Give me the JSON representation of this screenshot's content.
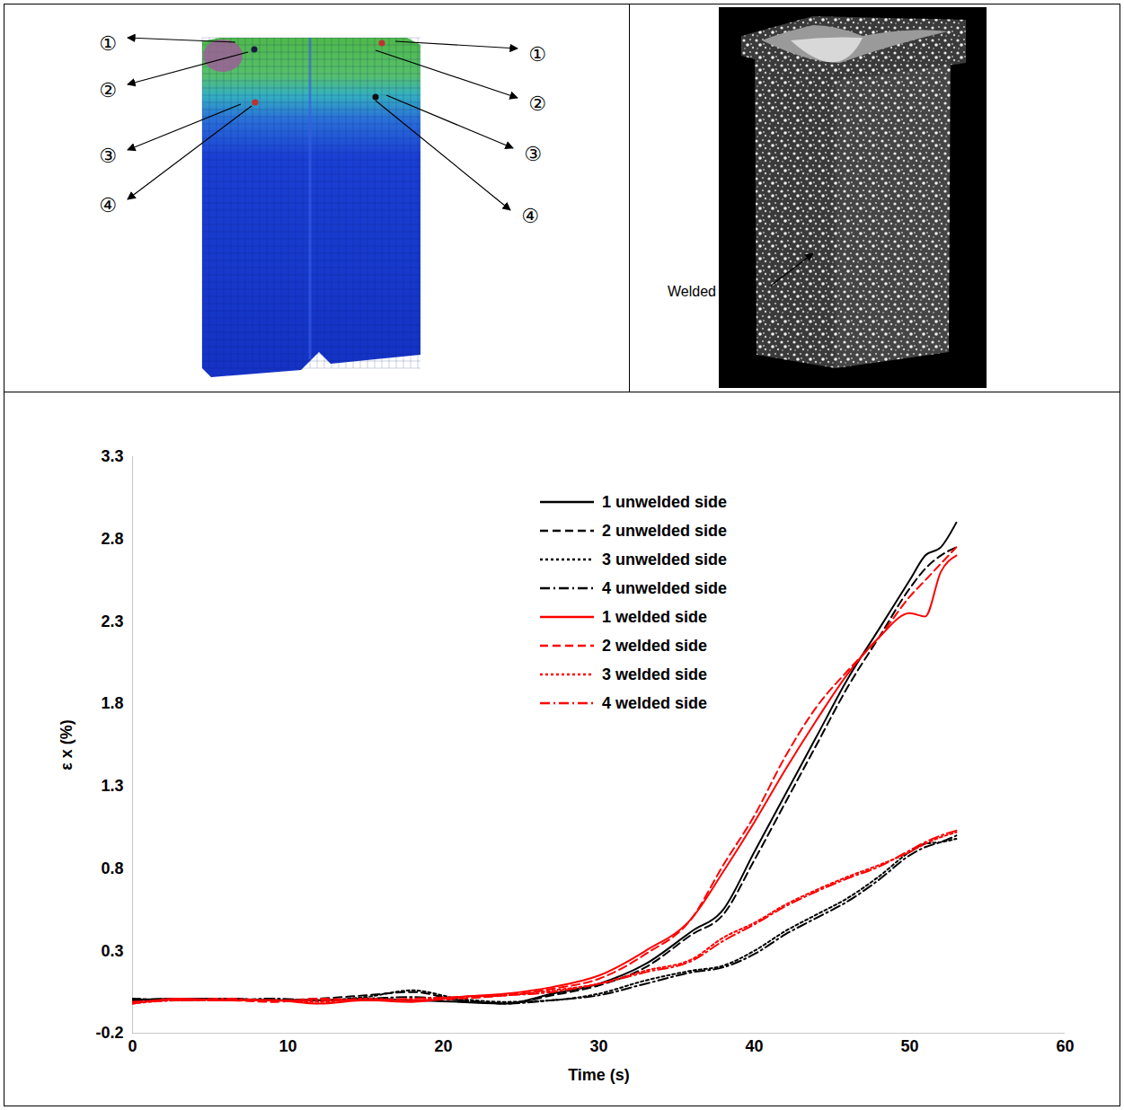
{
  "figure": {
    "mesh_point_labels": [
      "①",
      "②",
      "③",
      "④"
    ],
    "photo_label": "Welded"
  },
  "chart_data": {
    "type": "line",
    "x_label": "Time (s)",
    "y_label": "ε x (%)",
    "x": [
      0,
      3,
      6,
      9,
      12,
      15,
      18,
      21,
      24,
      27,
      30,
      33,
      36,
      38,
      40,
      42,
      44,
      46,
      48,
      50,
      51,
      52,
      53
    ],
    "series": [
      {
        "name": "1 unwelded side",
        "color": "#000000",
        "line_style": "solid",
        "values": [
          0.0,
          0.01,
          0.01,
          0.0,
          0.0,
          0.01,
          0.0,
          -0.01,
          -0.02,
          0.04,
          0.1,
          0.22,
          0.42,
          0.55,
          0.9,
          1.25,
          1.6,
          1.95,
          2.25,
          2.55,
          2.7,
          2.75,
          2.9
        ]
      },
      {
        "name": "2 unwelded side",
        "color": "#000000",
        "line_style": "dashed",
        "values": [
          0.01,
          0.0,
          0.01,
          0.0,
          0.01,
          0.03,
          0.05,
          0.0,
          -0.02,
          0.03,
          0.09,
          0.2,
          0.4,
          0.52,
          0.85,
          1.2,
          1.55,
          1.9,
          2.2,
          2.5,
          2.62,
          2.7,
          2.75
        ]
      },
      {
        "name": "3 unwelded side",
        "color": "#000000",
        "line_style": "dotted",
        "values": [
          0.01,
          0.0,
          0.01,
          0.0,
          0.0,
          0.02,
          0.06,
          0.01,
          -0.01,
          0.0,
          0.04,
          0.12,
          0.18,
          0.21,
          0.3,
          0.42,
          0.52,
          0.62,
          0.75,
          0.9,
          0.95,
          0.96,
          0.98
        ]
      },
      {
        "name": "4 unwelded side",
        "color": "#000000",
        "line_style": "dashdot",
        "values": [
          0.0,
          0.01,
          0.0,
          0.01,
          0.0,
          0.01,
          0.02,
          0.0,
          -0.02,
          0.0,
          0.03,
          0.1,
          0.17,
          0.2,
          0.28,
          0.4,
          0.5,
          0.6,
          0.73,
          0.88,
          0.93,
          0.96,
          1.0
        ]
      },
      {
        "name": "1 welded side",
        "color": "#ff0000",
        "line_style": "solid",
        "values": [
          -0.02,
          0.01,
          0.0,
          0.0,
          -0.02,
          0.0,
          -0.01,
          0.02,
          0.04,
          0.08,
          0.15,
          0.3,
          0.5,
          0.78,
          1.08,
          1.4,
          1.7,
          1.98,
          2.2,
          2.35,
          2.33,
          2.6,
          2.7
        ]
      },
      {
        "name": "2 welded side",
        "color": "#ff0000",
        "line_style": "dashed",
        "values": [
          -0.01,
          0.0,
          0.0,
          -0.01,
          0.01,
          0.0,
          0.0,
          0.01,
          0.03,
          0.07,
          0.13,
          0.28,
          0.5,
          0.82,
          1.12,
          1.48,
          1.78,
          2.0,
          2.2,
          2.45,
          2.55,
          2.65,
          2.75
        ]
      },
      {
        "name": "3 welded side",
        "color": "#ff0000",
        "line_style": "dotted",
        "values": [
          -0.02,
          0.0,
          0.0,
          0.0,
          -0.01,
          0.01,
          0.0,
          0.02,
          0.03,
          0.06,
          0.1,
          0.18,
          0.25,
          0.38,
          0.47,
          0.58,
          0.67,
          0.75,
          0.82,
          0.9,
          0.95,
          0.99,
          1.02
        ]
      },
      {
        "name": "4 welded side",
        "color": "#ff0000",
        "line_style": "dashdot",
        "values": [
          -0.01,
          0.0,
          0.01,
          0.0,
          0.0,
          0.0,
          0.01,
          0.02,
          0.03,
          0.05,
          0.1,
          0.17,
          0.24,
          0.36,
          0.46,
          0.57,
          0.66,
          0.74,
          0.81,
          0.91,
          0.96,
          1.0,
          1.03
        ]
      }
    ],
    "xlim": [
      0,
      60
    ],
    "xticks": [
      0,
      10,
      20,
      30,
      40,
      50,
      60
    ],
    "ylim": [
      -0.2,
      3.3
    ],
    "yticks": [
      -0.2,
      0.3,
      0.8,
      1.3,
      1.8,
      2.3,
      2.8,
      3.3
    ],
    "grid": false,
    "legend": "top-right"
  }
}
